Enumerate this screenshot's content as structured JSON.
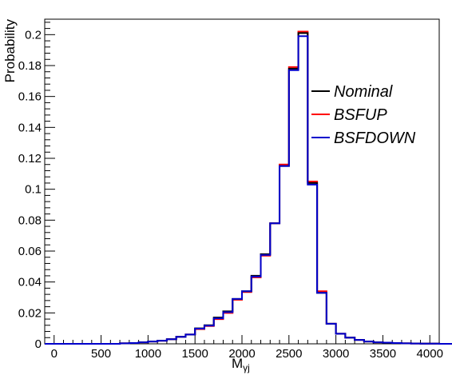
{
  "chart_data": {
    "type": "line",
    "style": "step-histogram",
    "xlabel": "M",
    "xlabel_subscript": "γj",
    "ylabel": "Probability",
    "xlim": [
      -100,
      4100
    ],
    "ylim": [
      0,
      0.21
    ],
    "x_ticks": [
      "0",
      "500",
      "1000",
      "1500",
      "2000",
      "2500",
      "3000",
      "3500",
      "4000"
    ],
    "y_ticks": [
      "0",
      "0.02",
      "0.04",
      "0.06",
      "0.08",
      "0.1",
      "0.12",
      "0.14",
      "0.16",
      "0.18",
      "0.2"
    ],
    "legend_position": "top-right",
    "bin_width": 100,
    "bins_start": -100,
    "series": [
      {
        "name": "Nominal",
        "color": "#000000",
        "values": [
          0,
          0,
          0,
          0,
          0,
          0,
          0,
          0,
          0.0003,
          0.0005,
          0.001,
          0.0015,
          0.002,
          0.003,
          0.0045,
          0.006,
          0.01,
          0.012,
          0.017,
          0.021,
          0.029,
          0.034,
          0.044,
          0.058,
          0.078,
          0.115,
          0.178,
          0.201,
          0.104,
          0.033,
          0.013,
          0.0065,
          0.004,
          0.0025,
          0.0015,
          0.001,
          0.0008,
          0.0005,
          0.0003,
          0.0002,
          0.0001,
          0.0001,
          0,
          0,
          0
        ]
      },
      {
        "name": "BSFUP",
        "color": "#ff0000",
        "values": [
          0,
          0,
          0,
          0,
          0,
          0,
          0,
          0,
          0.0003,
          0.0005,
          0.001,
          0.0015,
          0.002,
          0.003,
          0.0045,
          0.006,
          0.0095,
          0.0115,
          0.016,
          0.02,
          0.0285,
          0.0335,
          0.043,
          0.057,
          0.078,
          0.116,
          0.179,
          0.202,
          0.105,
          0.034,
          0.013,
          0.0065,
          0.004,
          0.0025,
          0.0015,
          0.001,
          0.0008,
          0.0005,
          0.0003,
          0.0002,
          0.0001,
          0.0001,
          0,
          0,
          0
        ]
      },
      {
        "name": "BSFDOWN",
        "color": "#0000cc",
        "values": [
          0,
          0,
          0,
          0,
          0,
          0,
          0,
          0,
          0.0003,
          0.0005,
          0.001,
          0.0015,
          0.002,
          0.003,
          0.0045,
          0.006,
          0.0098,
          0.0118,
          0.0165,
          0.0205,
          0.029,
          0.034,
          0.0435,
          0.0575,
          0.078,
          0.115,
          0.177,
          0.199,
          0.103,
          0.033,
          0.013,
          0.0065,
          0.004,
          0.0025,
          0.0015,
          0.001,
          0.0008,
          0.0005,
          0.0003,
          0.0002,
          0.0001,
          0.0001,
          0,
          0,
          0
        ]
      }
    ]
  }
}
